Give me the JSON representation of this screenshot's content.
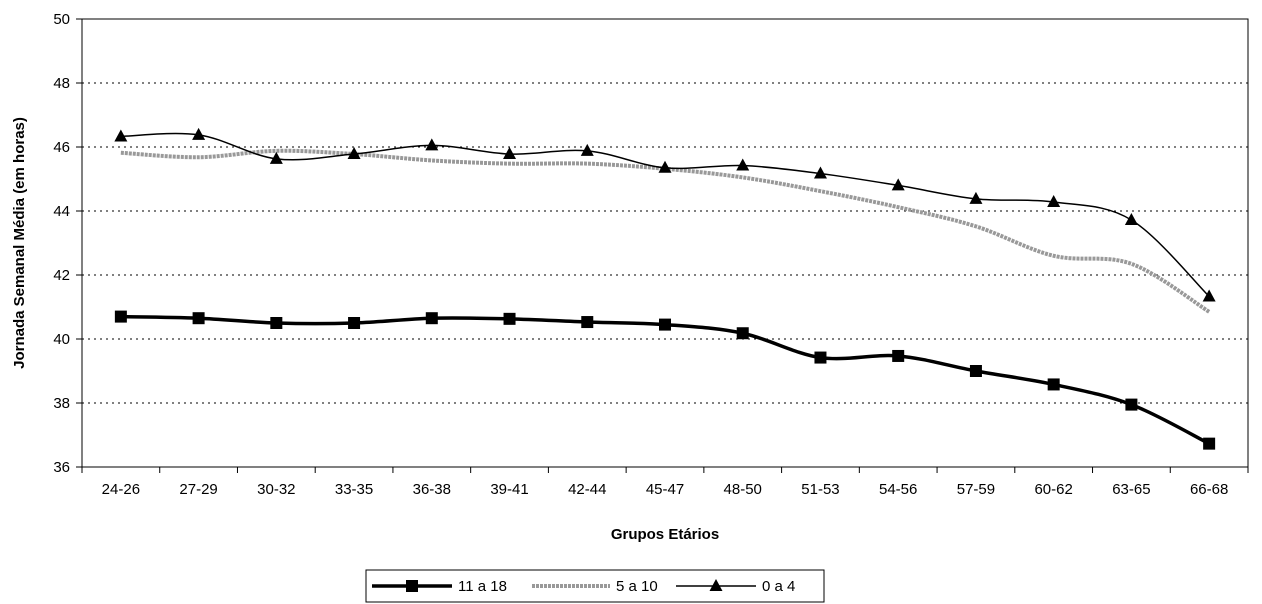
{
  "chart_data": {
    "type": "line",
    "xlabel": "Grupos Etários",
    "ylabel": "Jornada Semanal Média (em horas)",
    "ylim": [
      36,
      50
    ],
    "yticks": [
      36,
      38,
      40,
      42,
      44,
      46,
      48,
      50
    ],
    "grid": "horizontal dotted",
    "legend_position": "bottom",
    "categories": [
      "24-26",
      "27-29",
      "30-32",
      "33-35",
      "36-38",
      "39-41",
      "42-44",
      "45-47",
      "48-50",
      "51-53",
      "54-56",
      "57-59",
      "60-62",
      "63-65",
      "66-68"
    ],
    "series": [
      {
        "name": "11 a 18",
        "color": "#000000",
        "marker": "square",
        "values": [
          40.7,
          40.65,
          40.5,
          40.5,
          40.65,
          40.63,
          40.53,
          40.45,
          40.18,
          39.42,
          39.47,
          39.0,
          38.58,
          37.95,
          36.73
        ]
      },
      {
        "name": "5 a 10",
        "color": "#999999",
        "marker": "none",
        "values": [
          45.82,
          45.68,
          45.88,
          45.78,
          45.58,
          45.48,
          45.48,
          45.32,
          45.05,
          44.62,
          44.12,
          43.52,
          42.6,
          42.35,
          40.85
        ]
      },
      {
        "name": "0 a 4",
        "color": "#000000",
        "marker": "triangle",
        "values": [
          46.33,
          46.38,
          45.63,
          45.78,
          46.05,
          45.78,
          45.88,
          45.35,
          45.42,
          45.17,
          44.8,
          44.38,
          44.28,
          43.72,
          41.33
        ]
      }
    ]
  }
}
